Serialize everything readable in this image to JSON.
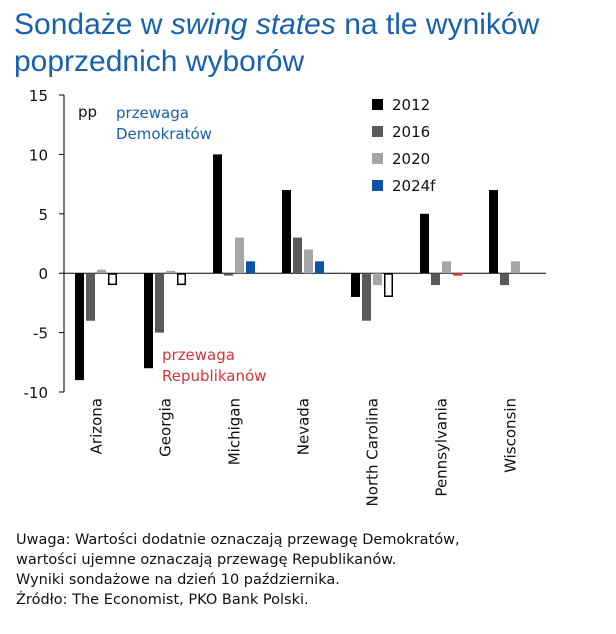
{
  "title": {
    "part1": "Sondaże w ",
    "part2": "swing states",
    "part3": " na tle wyników poprzednich wyborów"
  },
  "notes": [
    "Uwaga: Wartości dodatnie oznaczają przewagę Demokratów,",
    "wartości ujemne oznaczają przewagę Republikanów.",
    "Wyniki sondażowe na dzień 10 października.",
    "Źródło: The Economist, PKO Bank Polski."
  ],
  "chart_data": {
    "type": "bar",
    "ylabel": "pp",
    "ylim": [
      -10,
      15
    ],
    "yticks": [
      -10,
      -5,
      0,
      5,
      10,
      15
    ],
    "grid": false,
    "legend_position": "top-right",
    "categories": [
      "Arizona",
      "Georgia",
      "Michigan",
      "Nevada",
      "North Carolina",
      "Pennsylvania",
      "Wisconsin"
    ],
    "series": [
      {
        "name": "2012",
        "color": "#000000",
        "values": [
          -9,
          -8,
          10,
          7,
          -2,
          5,
          7
        ]
      },
      {
        "name": "2016",
        "color": "#595959",
        "values": [
          -4,
          -5,
          -0.2,
          3,
          -4,
          -1,
          -1
        ]
      },
      {
        "name": "2020",
        "color": "#a6a6a6",
        "values": [
          0.3,
          0.2,
          3,
          2,
          -1,
          1,
          1
        ]
      },
      {
        "name": "2024f",
        "color": "#0b53a6",
        "values": [
          -1,
          -1,
          1,
          1,
          -2,
          -0.2,
          null
        ]
      }
    ],
    "special_bars": [
      {
        "category": "Arizona",
        "series": "2024f",
        "style": "outline"
      },
      {
        "category": "Georgia",
        "series": "2024f",
        "style": "outline"
      },
      {
        "category": "North Carolina",
        "series": "2024f",
        "style": "outline"
      },
      {
        "category": "Pennsylvania",
        "series": "2024f",
        "style": "red",
        "color": "#e03a3a"
      }
    ],
    "annotations": [
      {
        "lines": [
          "przewaga",
          "Demokratów"
        ],
        "color": "#1761ad"
      },
      {
        "lines": [
          "przewaga",
          "Republikanów"
        ],
        "color": "#d6343a"
      }
    ]
  }
}
